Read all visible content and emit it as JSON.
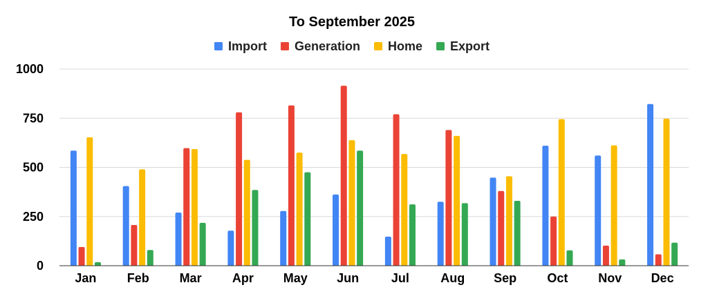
{
  "chart_data": {
    "type": "bar",
    "title": "To September 2025",
    "xlabel": "",
    "ylabel": "",
    "categories": [
      "Jan",
      "Feb",
      "Mar",
      "Apr",
      "May",
      "Jun",
      "Jul",
      "Aug",
      "Sep",
      "Oct",
      "Nov",
      "Dec"
    ],
    "series": [
      {
        "name": "Import",
        "color": "#4285f4",
        "values": [
          585,
          405,
          270,
          178,
          278,
          362,
          148,
          325,
          448,
          610,
          560,
          822
        ]
      },
      {
        "name": "Generation",
        "color": "#ea4335",
        "values": [
          95,
          207,
          598,
          780,
          815,
          915,
          770,
          690,
          380,
          250,
          102,
          58
        ]
      },
      {
        "name": "Home",
        "color": "#fbbc04",
        "values": [
          653,
          490,
          593,
          538,
          575,
          638,
          568,
          660,
          455,
          745,
          612,
          748
        ]
      },
      {
        "name": "Export",
        "color": "#34a853",
        "values": [
          18,
          80,
          218,
          385,
          475,
          585,
          312,
          318,
          330,
          78,
          32,
          117
        ]
      }
    ],
    "ylim": [
      0,
      1000
    ],
    "yticks": [
      0,
      250,
      500,
      750,
      1000
    ],
    "grid": true,
    "legend_position": "top-center"
  }
}
